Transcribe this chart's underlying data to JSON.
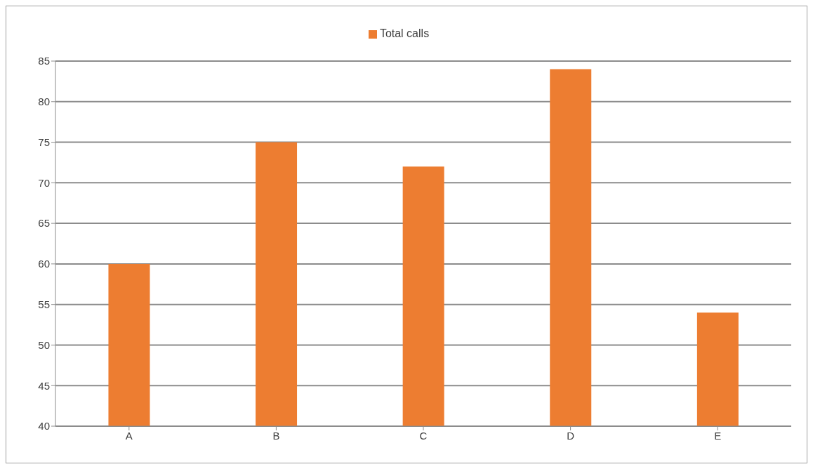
{
  "chart_data": {
    "type": "bar",
    "categories": [
      "A",
      "B",
      "C",
      "D",
      "E"
    ],
    "series": [
      {
        "name": "Total calls",
        "color": "#ed7d31",
        "values": [
          60,
          75,
          72,
          84,
          54
        ]
      }
    ],
    "ylim": [
      40,
      85
    ],
    "yticks": [
      40,
      45,
      50,
      55,
      60,
      65,
      70,
      75,
      80,
      85
    ],
    "grid": "y",
    "legend": "top"
  }
}
